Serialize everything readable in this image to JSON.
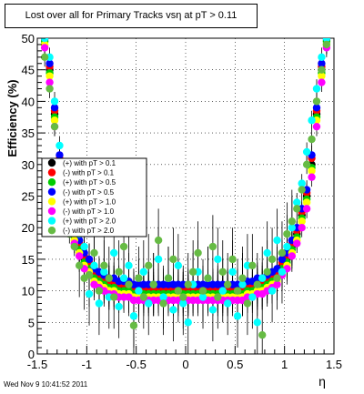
{
  "chart_data": {
    "type": "scatter",
    "title": "Lost over all for Primary Tracks vsη at pT > 0.11",
    "xlabel": "η",
    "ylabel": "Efficiency (%)",
    "xlim": [
      -1.5,
      1.5
    ],
    "ylim": [
      0,
      50
    ],
    "x_ticks": [
      -1.5,
      -1,
      -0.5,
      0,
      0.5,
      1,
      1.5
    ],
    "x_tick_labels": [
      "-1.5",
      "-1",
      "-0.5",
      "0",
      "0.5",
      "1",
      "1.5"
    ],
    "y_ticks": [
      0,
      5,
      10,
      15,
      20,
      25,
      30,
      35,
      40,
      45,
      50
    ],
    "y_tick_labels": [
      "0",
      "5",
      "10",
      "15",
      "20",
      "25",
      "30",
      "35",
      "40",
      "45",
      "50"
    ],
    "grid": true,
    "legend_position": "middle-left",
    "series": [
      {
        "name": "(+) with pT > 0.1",
        "color": "#000000",
        "x": [
          -1.425,
          -1.375,
          -1.325,
          -1.275,
          -1.225,
          -1.175,
          -1.125,
          -1.075,
          -1.025,
          -0.975,
          -0.925,
          -0.875,
          -0.825,
          -0.775,
          -0.725,
          -0.675,
          -0.625,
          -0.575,
          -0.525,
          -0.475,
          -0.425,
          -0.375,
          -0.325,
          -0.275,
          -0.225,
          -0.175,
          -0.125,
          -0.075,
          -0.025,
          0.025,
          0.075,
          0.125,
          0.175,
          0.225,
          0.275,
          0.325,
          0.375,
          0.425,
          0.475,
          0.525,
          0.575,
          0.625,
          0.675,
          0.725,
          0.775,
          0.825,
          0.875,
          0.925,
          0.975,
          1.025,
          1.075,
          1.125,
          1.175,
          1.225,
          1.275,
          1.325,
          1.375,
          1.425
        ],
        "y": [
          50,
          45,
          38,
          30,
          25,
          22,
          19,
          17,
          15,
          14,
          12.5,
          12,
          11.5,
          11,
          11,
          10.5,
          10.5,
          10.5,
          10,
          10,
          10,
          10,
          10,
          10,
          10,
          10,
          10,
          10,
          10,
          10,
          10,
          10,
          10,
          10,
          10,
          10,
          10,
          10,
          10,
          10,
          10,
          10.5,
          10.5,
          11,
          11,
          11.5,
          12,
          12.5,
          14,
          15,
          17,
          19,
          22,
          25,
          30,
          38,
          45,
          50
        ]
      },
      {
        "name": "(-) with pT > 0.1",
        "color": "#ff0000",
        "x": [
          -1.425,
          -1.375,
          -1.325,
          -1.275,
          -1.225,
          -1.175,
          -1.125,
          -1.075,
          -1.025,
          -0.975,
          -0.925,
          -0.875,
          -0.825,
          -0.775,
          -0.725,
          -0.675,
          -0.625,
          -0.575,
          -0.525,
          -0.475,
          -0.425,
          -0.375,
          -0.325,
          -0.275,
          -0.225,
          -0.175,
          -0.125,
          -0.075,
          -0.025,
          0.025,
          0.075,
          0.125,
          0.175,
          0.225,
          0.275,
          0.325,
          0.375,
          0.425,
          0.475,
          0.525,
          0.575,
          0.625,
          0.675,
          0.725,
          0.775,
          0.825,
          0.875,
          0.925,
          0.975,
          1.025,
          1.075,
          1.125,
          1.175,
          1.225,
          1.275,
          1.325,
          1.375,
          1.425
        ],
        "y": [
          50,
          45.5,
          38.5,
          31,
          25.5,
          22.5,
          19.5,
          17.5,
          15.5,
          14.5,
          13,
          12.5,
          12,
          11.5,
          11.5,
          11,
          11,
          11,
          10.5,
          10.5,
          10.5,
          10.5,
          10.5,
          10.5,
          10.5,
          10.5,
          10.5,
          10.5,
          10.5,
          10.5,
          10.5,
          10.5,
          10.5,
          10.5,
          10.5,
          10.5,
          10.5,
          10.5,
          10.5,
          10.5,
          10.5,
          11,
          11,
          11.5,
          11.5,
          12,
          12.5,
          13,
          14.5,
          15.5,
          17.5,
          19.5,
          22.5,
          25.5,
          31,
          38.5,
          45.5,
          50
        ]
      },
      {
        "name": "(+) with pT > 0.5",
        "color": "#00cc00",
        "x": [
          -1.425,
          -1.375,
          -1.325,
          -1.275,
          -1.225,
          -1.175,
          -1.125,
          -1.075,
          -1.025,
          -0.975,
          -0.925,
          -0.875,
          -0.825,
          -0.775,
          -0.725,
          -0.675,
          -0.625,
          -0.575,
          -0.525,
          -0.475,
          -0.425,
          -0.375,
          -0.325,
          -0.275,
          -0.225,
          -0.175,
          -0.125,
          -0.075,
          -0.025,
          0.025,
          0.075,
          0.125,
          0.175,
          0.225,
          0.275,
          0.325,
          0.375,
          0.425,
          0.475,
          0.525,
          0.575,
          0.625,
          0.675,
          0.725,
          0.775,
          0.825,
          0.875,
          0.925,
          0.975,
          1.025,
          1.075,
          1.125,
          1.175,
          1.225,
          1.275,
          1.325,
          1.375,
          1.425
        ],
        "y": [
          49.5,
          44.5,
          37.5,
          29.5,
          24.5,
          21.5,
          18.5,
          16.5,
          14.5,
          13.5,
          12,
          11.5,
          11,
          10.5,
          10.5,
          10,
          10,
          10,
          9.5,
          9.5,
          9.5,
          9.5,
          9.5,
          9.5,
          9.5,
          9.5,
          9.5,
          9.5,
          9.5,
          9.5,
          9.5,
          9.5,
          9.5,
          9.5,
          9.5,
          9.5,
          9.5,
          9.5,
          9.5,
          9.5,
          9.5,
          10,
          10,
          10.5,
          10.5,
          11,
          11.5,
          12,
          13.5,
          14.5,
          16.5,
          18.5,
          21.5,
          24.5,
          29.5,
          37.5,
          44.5,
          49.5
        ]
      },
      {
        "name": "(-) with pT > 0.5",
        "color": "#0000ff",
        "x": [
          -1.425,
          -1.375,
          -1.325,
          -1.275,
          -1.225,
          -1.175,
          -1.125,
          -1.075,
          -1.025,
          -0.975,
          -0.925,
          -0.875,
          -0.825,
          -0.775,
          -0.725,
          -0.675,
          -0.625,
          -0.575,
          -0.525,
          -0.475,
          -0.425,
          -0.375,
          -0.325,
          -0.275,
          -0.225,
          -0.175,
          -0.125,
          -0.075,
          -0.025,
          0.025,
          0.075,
          0.125,
          0.175,
          0.225,
          0.275,
          0.325,
          0.375,
          0.425,
          0.475,
          0.525,
          0.575,
          0.625,
          0.675,
          0.725,
          0.775,
          0.825,
          0.875,
          0.925,
          0.975,
          1.025,
          1.075,
          1.125,
          1.175,
          1.225,
          1.275,
          1.325,
          1.375,
          1.425
        ],
        "y": [
          50,
          46,
          39,
          31.5,
          26,
          23,
          20,
          18,
          16,
          15,
          13.5,
          13,
          12.5,
          12,
          12,
          11.5,
          11.5,
          11.5,
          11,
          11,
          11,
          11,
          11,
          11,
          11,
          11,
          11,
          11,
          11,
          11,
          11,
          11,
          11,
          11,
          11,
          11,
          11,
          11,
          11,
          11,
          11,
          11.5,
          11.5,
          12,
          12,
          12.5,
          13,
          13.5,
          15,
          16,
          18,
          20,
          23,
          26,
          31.5,
          39,
          46,
          50
        ]
      },
      {
        "name": "(+) with pT > 1.0",
        "color": "#ffff00",
        "x": [
          -1.425,
          -1.375,
          -1.325,
          -1.275,
          -1.225,
          -1.175,
          -1.125,
          -1.075,
          -1.025,
          -0.975,
          -0.925,
          -0.875,
          -0.825,
          -0.775,
          -0.725,
          -0.675,
          -0.625,
          -0.575,
          -0.525,
          -0.475,
          -0.425,
          -0.375,
          -0.325,
          -0.275,
          -0.225,
          -0.175,
          -0.125,
          -0.075,
          -0.025,
          0.025,
          0.075,
          0.125,
          0.175,
          0.225,
          0.275,
          0.325,
          0.375,
          0.425,
          0.475,
          0.525,
          0.575,
          0.625,
          0.675,
          0.725,
          0.775,
          0.825,
          0.875,
          0.925,
          0.975,
          1.025,
          1.075,
          1.125,
          1.175,
          1.225,
          1.275,
          1.325,
          1.375,
          1.425
        ],
        "y": [
          49,
          44,
          37,
          29,
          24,
          21,
          18,
          16,
          14,
          13,
          11.5,
          11,
          10.5,
          10,
          10,
          9.5,
          9.5,
          9.5,
          9,
          9,
          9,
          9,
          9,
          9,
          9,
          9,
          9,
          9,
          9,
          9,
          9,
          9,
          9,
          9,
          9,
          9,
          9,
          9,
          9,
          9,
          9,
          9.5,
          9.5,
          10,
          10,
          10.5,
          11,
          11.5,
          13,
          14,
          16,
          18,
          21,
          24,
          29,
          37,
          44,
          49
        ]
      },
      {
        "name": "(-) with pT > 1.0",
        "color": "#ff00ff",
        "x": [
          -1.425,
          -1.375,
          -1.325,
          -1.275,
          -1.225,
          -1.175,
          -1.125,
          -1.075,
          -1.025,
          -0.975,
          -0.925,
          -0.875,
          -0.825,
          -0.775,
          -0.725,
          -0.675,
          -0.625,
          -0.575,
          -0.525,
          -0.475,
          -0.425,
          -0.375,
          -0.325,
          -0.275,
          -0.225,
          -0.175,
          -0.125,
          -0.075,
          -0.025,
          0.025,
          0.075,
          0.125,
          0.175,
          0.225,
          0.275,
          0.325,
          0.375,
          0.425,
          0.475,
          0.525,
          0.575,
          0.625,
          0.675,
          0.725,
          0.775,
          0.825,
          0.875,
          0.925,
          0.975,
          1.025,
          1.075,
          1.125,
          1.175,
          1.225,
          1.275,
          1.325,
          1.375,
          1.425
        ],
        "y": [
          48.5,
          43,
          36,
          28,
          23,
          20,
          17.5,
          15.5,
          13.5,
          12.5,
          11,
          10.5,
          10,
          9.5,
          9.5,
          9,
          9,
          9,
          8.5,
          8.5,
          8.5,
          8.5,
          8.5,
          8.5,
          8.5,
          8.5,
          8.5,
          8.5,
          8.5,
          8.5,
          8.5,
          8.5,
          8.5,
          8.5,
          8.5,
          8.5,
          8.5,
          8.5,
          8.5,
          8.5,
          8.5,
          9,
          9,
          9.5,
          9.5,
          10,
          10.5,
          11,
          12.5,
          13.5,
          15.5,
          17.5,
          20,
          23,
          28,
          36,
          43,
          48.5
        ]
      },
      {
        "name": "(+) with pT > 2.0",
        "color": "#00ffff",
        "x": [
          -1.425,
          -1.375,
          -1.325,
          -1.275,
          -1.225,
          -1.175,
          -1.125,
          -1.075,
          -1.025,
          -0.975,
          -0.925,
          -0.875,
          -0.825,
          -0.775,
          -0.725,
          -0.675,
          -0.625,
          -0.575,
          -0.525,
          -0.475,
          -0.425,
          -0.375,
          -0.325,
          -0.275,
          -0.225,
          -0.175,
          -0.125,
          -0.075,
          -0.025,
          0.025,
          0.075,
          0.125,
          0.175,
          0.225,
          0.275,
          0.325,
          0.375,
          0.425,
          0.475,
          0.525,
          0.575,
          0.625,
          0.675,
          0.725,
          0.775,
          0.825,
          0.875,
          0.925,
          0.975,
          1.025,
          1.075,
          1.125,
          1.175,
          1.225,
          1.275,
          1.325,
          1.375,
          1.425
        ],
        "y": [
          50,
          47,
          40,
          33,
          27,
          24,
          21,
          19,
          17,
          9.5,
          14,
          8,
          13,
          9,
          16,
          7.5,
          12,
          14,
          6,
          10,
          13,
          8,
          11,
          15,
          9,
          12,
          7,
          14,
          8,
          5,
          11,
          13,
          9,
          12,
          7,
          15,
          10,
          8,
          13,
          6,
          11,
          14,
          9,
          5,
          12,
          16,
          10,
          18,
          13,
          17,
          20,
          24,
          27,
          32,
          37,
          42,
          47,
          50
        ]
      },
      {
        "name": "(-) with pT > 2.0",
        "color": "#66bb44",
        "x": [
          -1.425,
          -1.375,
          -1.325,
          -1.275,
          -1.225,
          -1.175,
          -1.125,
          -1.075,
          -1.025,
          -0.975,
          -0.925,
          -0.875,
          -0.825,
          -0.775,
          -0.725,
          -0.675,
          -0.625,
          -0.575,
          -0.525,
          -0.475,
          -0.425,
          -0.375,
          -0.325,
          -0.275,
          -0.225,
          -0.175,
          -0.125,
          -0.075,
          -0.025,
          0.025,
          0.075,
          0.125,
          0.175,
          0.225,
          0.275,
          0.325,
          0.375,
          0.425,
          0.475,
          0.525,
          0.575,
          0.625,
          0.675,
          0.725,
          0.775,
          0.825,
          0.875,
          0.925,
          0.975,
          1.025,
          1.075,
          1.125,
          1.175,
          1.225,
          1.275,
          1.325,
          1.375,
          1.425
        ],
        "y": [
          47,
          42,
          36,
          28,
          22,
          19,
          17,
          14,
          12,
          12.5,
          16,
          10,
          14,
          12,
          9,
          13,
          17,
          11,
          4.5,
          12,
          9,
          14,
          11,
          18,
          8,
          12,
          15,
          10,
          9,
          11,
          13,
          16,
          10,
          12,
          17,
          9,
          13,
          11,
          15,
          10,
          12,
          8,
          14,
          11,
          3,
          13,
          15,
          12,
          16,
          19,
          21,
          23,
          26,
          30,
          34,
          40,
          45,
          49
        ]
      }
    ],
    "footer": "Wed Nov  9 10:41:52 2011"
  }
}
